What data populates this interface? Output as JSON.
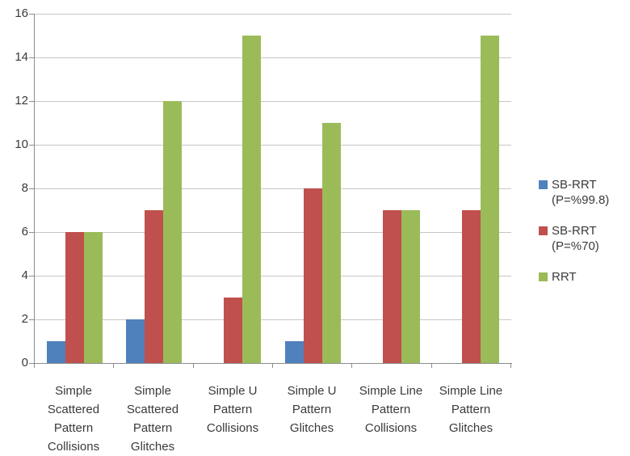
{
  "chart_data": {
    "type": "bar",
    "title": "",
    "xlabel": "",
    "ylabel": "",
    "categories": [
      "Simple Scattered Pattern Collisions",
      "Simple Scattered Pattern Glitches",
      "Simple U Pattern Collisions",
      "Simple U Pattern Glitches",
      "Simple Line Pattern Collisions",
      "Simple Line Pattern Glitches"
    ],
    "category_label_lines": [
      [
        "Simple",
        "Scattered",
        "Pattern",
        "Collisions"
      ],
      [
        "Simple",
        "Scattered",
        "Pattern",
        "Glitches"
      ],
      [
        "Simple U",
        "Pattern",
        "Collisions"
      ],
      [
        "Simple U",
        "Pattern",
        "Glitches"
      ],
      [
        "Simple Line",
        "Pattern",
        "Collisions"
      ],
      [
        "Simple Line",
        "Pattern",
        "Glitches"
      ]
    ],
    "series": [
      {
        "name": "SB-RRT (P=%99.8)",
        "label_lines": [
          "SB-RRT",
          "(P=%99.8)"
        ],
        "color": "#4F81BD",
        "values": [
          1,
          2,
          0,
          1,
          0,
          0
        ]
      },
      {
        "name": "SB-RRT (P=%70)",
        "label_lines": [
          "SB-RRT",
          "(P=%70)"
        ],
        "color": "#C0504D",
        "values": [
          6,
          7,
          3,
          8,
          7,
          7
        ]
      },
      {
        "name": "RRT",
        "label_lines": [
          "RRT"
        ],
        "color": "#9BBB59",
        "values": [
          6,
          12,
          15,
          11,
          7,
          15
        ]
      }
    ],
    "ylim": [
      0,
      16
    ],
    "y_ticks": [
      0,
      2,
      4,
      6,
      8,
      10,
      12,
      14,
      16
    ],
    "grid": true,
    "legend_position": "right",
    "colors": {
      "axis": "#8C8C8C",
      "gridline": "#C6C6C6",
      "text": "#3A3A3A",
      "background": "#FFFFFF"
    }
  }
}
